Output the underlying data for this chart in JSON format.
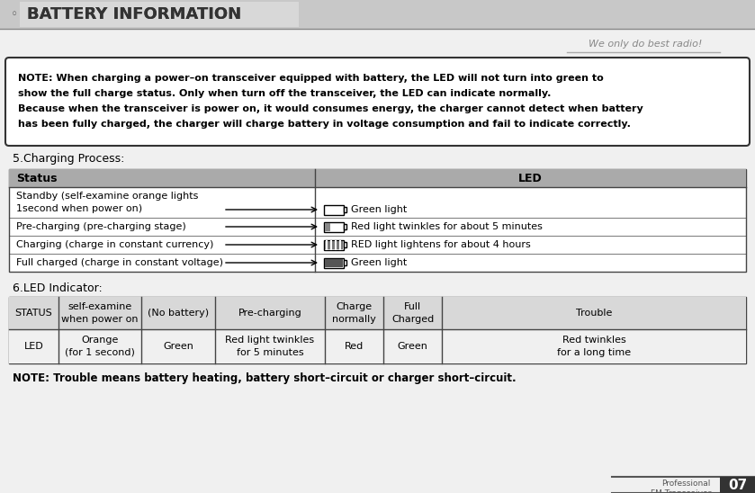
{
  "title": "BATTERY INFORMATION",
  "title_bullet": "◦",
  "slogan": "We only do best radio!",
  "bg_color": "#f0f0f0",
  "header_bg": "#c8c8c8",
  "note_text_lines": [
    "NOTE: When charging a power–on transceiver equipped with battery, the LED will not turn into green to",
    "show the full charge status. Only when turn off the transceiver, the LED can indicate normally.",
    "Because when the transceiver is power on, it would consumes energy, the charger cannot detect when battery",
    "has been fully charged, the charger will charge battery in voltage consumption and fail to indicate correctly."
  ],
  "section5_label": "5.Charging Process:",
  "section6_label": "6.LED Indicator:",
  "table5_header": [
    "Status",
    "LED"
  ],
  "table5_col1_labels": [
    "Standby (self-examine orange lights",
    "1second when power on)",
    "Pre-charging (pre-charging stage)",
    "Charging (charge in constant currency)",
    "Full charged (charge in constant voltage)"
  ],
  "table5_led_labels": [
    "Green light",
    "Red light twinkles for about 5 minutes",
    "RED light lightens for about 4 hours",
    "Green light"
  ],
  "table6_header": [
    "STATUS",
    "self-examine\nwhen power on",
    "(No battery)",
    "Pre-charging",
    "Charge\nnormally",
    "Full\nCharged",
    "Trouble"
  ],
  "table6_row2_col0": "LED",
  "table6_row2_led": [
    "Orange\n(for 1 second)",
    "Green",
    "Red light twinkles\nfor 5 minutes",
    "Red",
    "Green",
    "Red twinkles\nfor a long time"
  ],
  "note2_text": "NOTE: Trouble means battery heating, battery short–circuit or charger short–circuit.",
  "footer_text": "Professional\nFM Transceiver",
  "footer_num": "07",
  "table5_header_bg": "#aaaaaa",
  "table5_body_bg": "#ffffff",
  "table5_border": "#444444",
  "table6_header_bg": "#d8d8d8",
  "table6_body_bg": "#f0f0f0",
  "table6_border": "#444444"
}
